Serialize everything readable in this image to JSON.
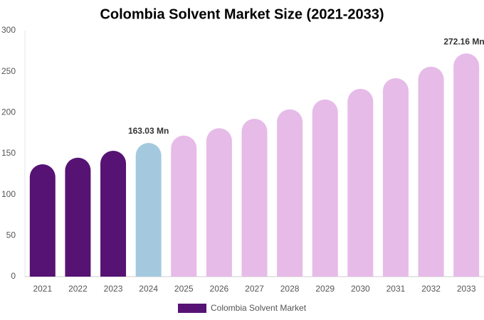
{
  "chart_data": {
    "type": "bar",
    "title": "Colombia Solvent Market Size (2021-2033)",
    "categories": [
      "2021",
      "2022",
      "2023",
      "2024",
      "2025",
      "2026",
      "2027",
      "2028",
      "2029",
      "2030",
      "2031",
      "2032",
      "2033"
    ],
    "series": [
      {
        "name": "Colombia Solvent Market",
        "color": "#561373",
        "values": [
          137,
          145,
          153.5,
          163.03,
          172,
          181,
          192.5,
          204,
          216,
          229,
          242,
          256,
          272.16
        ],
        "value_labels": [
          null,
          null,
          null,
          "163.03 Mn",
          null,
          null,
          null,
          null,
          null,
          null,
          null,
          null,
          "272.16 Mn"
        ],
        "colors": [
          "#561373",
          "#561373",
          "#561373",
          "#a4c9de",
          "#e6bbe8",
          "#e6bbe8",
          "#e6bbe8",
          "#e6bbe8",
          "#e6bbe8",
          "#e6bbe8",
          "#e6bbe8",
          "#e6bbe8",
          "#e6bbe8"
        ]
      }
    ],
    "ylim": [
      0,
      300
    ],
    "yticks": [
      0,
      50,
      100,
      150,
      200,
      250,
      300
    ],
    "grid": false
  }
}
